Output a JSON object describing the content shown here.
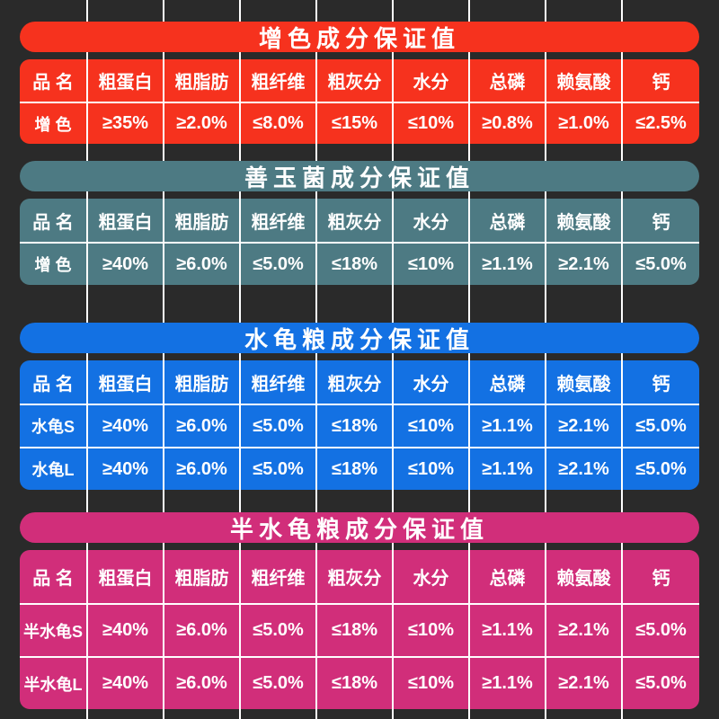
{
  "page": {
    "background": "#2a2a2a",
    "grid_line_color": "#ffffff"
  },
  "sections": [
    {
      "id": "color-enhancing",
      "title": "增色成分保证值",
      "color": "#f6321e",
      "headers": [
        "品 名",
        "粗蛋白",
        "粗脂肪",
        "粗纤维",
        "粗灰分",
        "水分",
        "总磷",
        "赖氨酸",
        "钙"
      ],
      "rows": [
        [
          "增 色",
          "≥35%",
          "≥2.0%",
          "≤8.0%",
          "≤15%",
          "≤10%",
          "≥0.8%",
          "≥1.0%",
          "≤2.5%"
        ]
      ]
    },
    {
      "id": "probiotic",
      "title": "善玉菌成分保证值",
      "color": "#4d7a83",
      "headers": [
        "品 名",
        "粗蛋白",
        "粗脂肪",
        "粗纤维",
        "粗灰分",
        "水分",
        "总磷",
        "赖氨酸",
        "钙"
      ],
      "rows": [
        [
          "增 色",
          "≥40%",
          "≥6.0%",
          "≤5.0%",
          "≤18%",
          "≤10%",
          "≥1.1%",
          "≥2.1%",
          "≤5.0%"
        ]
      ]
    },
    {
      "id": "aquatic-turtle-food",
      "title": "水龟粮成分保证值",
      "color": "#1371e3",
      "headers": [
        "品 名",
        "粗蛋白",
        "粗脂肪",
        "粗纤维",
        "粗灰分",
        "水分",
        "总磷",
        "赖氨酸",
        "钙"
      ],
      "rows": [
        [
          "水龟S",
          "≥40%",
          "≥6.0%",
          "≤5.0%",
          "≤18%",
          "≤10%",
          "≥1.1%",
          "≥2.1%",
          "≤5.0%"
        ],
        [
          "水龟L",
          "≥40%",
          "≥6.0%",
          "≤5.0%",
          "≤18%",
          "≤10%",
          "≥1.1%",
          "≥2.1%",
          "≤5.0%"
        ]
      ]
    },
    {
      "id": "semi-aquatic-turtle-food",
      "title": "半水龟粮成分保证值",
      "color": "#d12e7a",
      "headers": [
        "品 名",
        "粗蛋白",
        "粗脂肪",
        "粗纤维",
        "粗灰分",
        "水分",
        "总磷",
        "赖氨酸",
        "钙"
      ],
      "rows": [
        [
          "半水龟S",
          "≥40%",
          "≥6.0%",
          "≤5.0%",
          "≤18%",
          "≤10%",
          "≥1.1%",
          "≥2.1%",
          "≤5.0%"
        ],
        [
          "半水龟L",
          "≥40%",
          "≥6.0%",
          "≤5.0%",
          "≤18%",
          "≤10%",
          "≥1.1%",
          "≥2.1%",
          "≤5.0%"
        ]
      ]
    }
  ]
}
